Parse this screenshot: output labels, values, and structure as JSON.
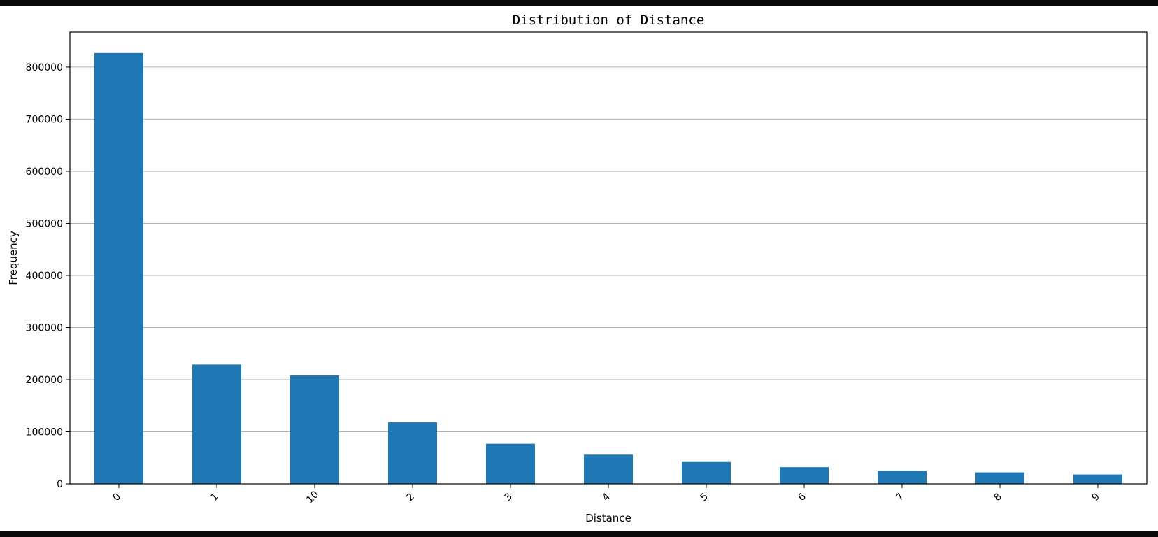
{
  "chart_data": {
    "type": "bar",
    "title": "Distribution of Distance",
    "xlabel": "Distance",
    "ylabel": "Frequency",
    "categories": [
      "0",
      "1",
      "10",
      "2",
      "3",
      "4",
      "5",
      "6",
      "7",
      "8",
      "9"
    ],
    "values": [
      827000,
      229000,
      208000,
      118000,
      77000,
      56000,
      42000,
      32000,
      25000,
      22000,
      18000
    ],
    "ylim": [
      0,
      867000
    ],
    "yticks": [
      0,
      100000,
      200000,
      300000,
      400000,
      500000,
      600000,
      700000,
      800000
    ],
    "ytick_labels": [
      "0",
      "100000",
      "200000",
      "300000",
      "400000",
      "500000",
      "600000",
      "700000",
      "800000"
    ],
    "grid": "horizontal",
    "legend": "none",
    "bar_color": "#1f77b4",
    "grid_color": "#b0b0b0"
  }
}
